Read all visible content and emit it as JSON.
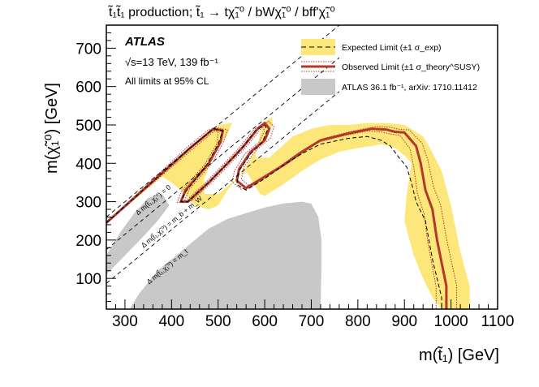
{
  "chart_data": {
    "type": "exclusion-contour",
    "title": "t̃₁t̃₁ production; t̃₁ → tχ̃₁⁰ / bWχ̃₁⁰ / bff'χ̃₁⁰",
    "xlabel": "m(t̃₁) [GeV]",
    "ylabel": "m(χ̃₁⁰) [GeV]",
    "xlim": [
      260,
      1100
    ],
    "ylim": [
      20,
      760
    ],
    "xticks": [
      300,
      400,
      500,
      600,
      700,
      800,
      900,
      1000,
      1100
    ],
    "yticks": [
      100,
      200,
      300,
      400,
      500,
      600,
      700
    ],
    "experiment": "ATLAS",
    "energy_lumi": "√s=13 TeV, 139 fb⁻¹",
    "cl_note": "All limits at 95% CL",
    "colors": {
      "expected_band": "#fde77a",
      "observed": "#b0392b",
      "previous": "#c8c8c8",
      "diagonal": "#000000"
    },
    "legend": [
      {
        "label": "Expected Limit (±1 σ_exp)",
        "style": "dashed line in yellow band"
      },
      {
        "label": "Observed Limit (±1 σ_theory^SUSY)",
        "style": "solid red line with dotted red lines"
      },
      {
        "label": "ATLAS 36.1 fb⁻¹, arXiv: 1710.11412",
        "style": "grey filled area"
      }
    ],
    "diagonal_labels": [
      "Δ m(t̃₁,χ̃₁⁰) = 0",
      "Δ m(t̃₁,χ̃₁⁰) = m_b + m_W",
      "Δ m(t̃₁,χ̃₁⁰) = m_t"
    ],
    "series": [
      {
        "name": "Observed Limit",
        "x": [
          260,
          440,
          490,
          510,
          505,
          480,
          430,
          420,
          435,
          480,
          520,
          540,
          555,
          585,
          600,
          610,
          600,
          570,
          545,
          540,
          560,
          600,
          640,
          680,
          720,
          780,
          830,
          860,
          880,
          900,
          925,
          935,
          945,
          960,
          970,
          990,
          990
        ],
        "y": [
          245,
          440,
          490,
          485,
          455,
          400,
          330,
          300,
          300,
          350,
          400,
          425,
          445,
          490,
          505,
          490,
          460,
          430,
          385,
          355,
          335,
          365,
          395,
          430,
          460,
          478,
          490,
          488,
          482,
          480,
          445,
          400,
          330,
          280,
          200,
          80,
          20
        ]
      },
      {
        "name": "Observed Limit +1σ theory",
        "x": [
          260,
          450,
          500,
          520,
          512,
          488,
          438,
          428,
          443,
          488,
          528,
          548,
          563,
          593,
          608,
          620,
          612,
          582,
          555,
          550,
          570,
          610,
          650,
          690,
          730,
          790,
          840,
          870,
          890,
          910,
          938,
          950,
          962,
          978,
          990,
          1012,
          1012
        ],
        "y": [
          245,
          442,
          492,
          487,
          457,
          402,
          332,
          302,
          302,
          352,
          402,
          427,
          447,
          492,
          510,
          495,
          465,
          435,
          390,
          358,
          338,
          370,
          400,
          435,
          466,
          484,
          496,
          494,
          488,
          487,
          452,
          410,
          340,
          290,
          205,
          82,
          20
        ]
      },
      {
        "name": "Observed Limit -1σ theory",
        "x": [
          260,
          430,
          480,
          500,
          498,
          472,
          422,
          412,
          427,
          472,
          512,
          532,
          547,
          577,
          592,
          600,
          588,
          558,
          535,
          530,
          550,
          590,
          630,
          670,
          710,
          770,
          820,
          850,
          870,
          890,
          912,
          920,
          928,
          942,
          950,
          968,
          968
        ],
        "y": [
          245,
          438,
          488,
          483,
          453,
          398,
          328,
          298,
          298,
          348,
          398,
          423,
          443,
          488,
          500,
          485,
          455,
          425,
          380,
          352,
          332,
          360,
          390,
          425,
          454,
          472,
          484,
          482,
          476,
          473,
          438,
          390,
          320,
          270,
          195,
          78,
          20
        ]
      },
      {
        "name": "Expected Limit",
        "x": [
          260,
          440,
          490,
          510,
          500,
          475,
          430,
          420,
          435,
          480,
          520,
          540,
          555,
          580,
          600,
          605,
          595,
          570,
          545,
          540,
          560,
          600,
          640,
          680,
          720,
          780,
          820,
          850,
          870,
          885,
          905,
          915,
          925,
          945,
          960,
          980,
          980
        ],
        "y": [
          245,
          440,
          490,
          485,
          450,
          395,
          325,
          300,
          300,
          350,
          400,
          425,
          445,
          485,
          500,
          485,
          455,
          425,
          380,
          345,
          330,
          360,
          395,
          425,
          450,
          465,
          470,
          460,
          445,
          420,
          390,
          350,
          300,
          250,
          150,
          50,
          20
        ]
      }
    ],
    "expected_band": {
      "name": "Expected Limit ±1σ exp",
      "x": [
        260,
        420,
        460,
        500,
        530,
        520,
        490,
        470,
        470,
        500,
        545,
        575,
        600,
        618,
        615,
        595,
        580,
        610,
        660,
        700,
        740,
        780,
        820,
        860,
        900,
        940,
        955,
        980,
        1000,
        1020,
        1040,
        1040,
        980,
        960,
        940,
        920,
        900,
        905,
        915,
        900,
        880,
        850,
        830,
        800,
        760,
        720,
        680,
        640,
        600,
        590,
        580,
        560,
        540,
        520,
        500,
        480,
        450,
        440,
        420,
        400,
        380,
        260
      ],
      "y": [
        245,
        420,
        460,
        500,
        505,
        475,
        420,
        360,
        320,
        320,
        365,
        420,
        470,
        500,
        520,
        505,
        415,
        415,
        470,
        490,
        500,
        500,
        505,
        505,
        500,
        470,
        440,
        380,
        290,
        170,
        80,
        20,
        20,
        50,
        100,
        160,
        250,
        320,
        400,
        420,
        440,
        450,
        445,
        440,
        430,
        410,
        380,
        345,
        315,
        320,
        340,
        380,
        360,
        330,
        290,
        280,
        290,
        305,
        330,
        350,
        365,
        245
      ]
    },
    "previous_limit": {
      "name": "ATLAS 36.1 fb⁻¹, arXiv: 1710.11412",
      "x": [
        310,
        330,
        370,
        420,
        450,
        480,
        520,
        560,
        600,
        640,
        680,
        700,
        715,
        722,
        722,
        720,
        680,
        640,
        600,
        560,
        520,
        480,
        440,
        410,
        380,
        360,
        350,
        340,
        330,
        320,
        315
      ],
      "y": [
        20,
        60,
        120,
        170,
        200,
        230,
        255,
        270,
        285,
        295,
        300,
        295,
        260,
        200,
        150,
        20,
        20,
        20,
        20,
        20,
        20,
        20,
        20,
        20,
        20,
        20,
        20,
        20,
        20,
        20,
        20
      ]
    },
    "previous_limit_diag": {
      "x": [
        260,
        300,
        340,
        370,
        395,
        380,
        350,
        320,
        290,
        260
      ],
      "y": [
        110,
        160,
        210,
        250,
        290,
        320,
        310,
        270,
        220,
        160
      ]
    }
  }
}
